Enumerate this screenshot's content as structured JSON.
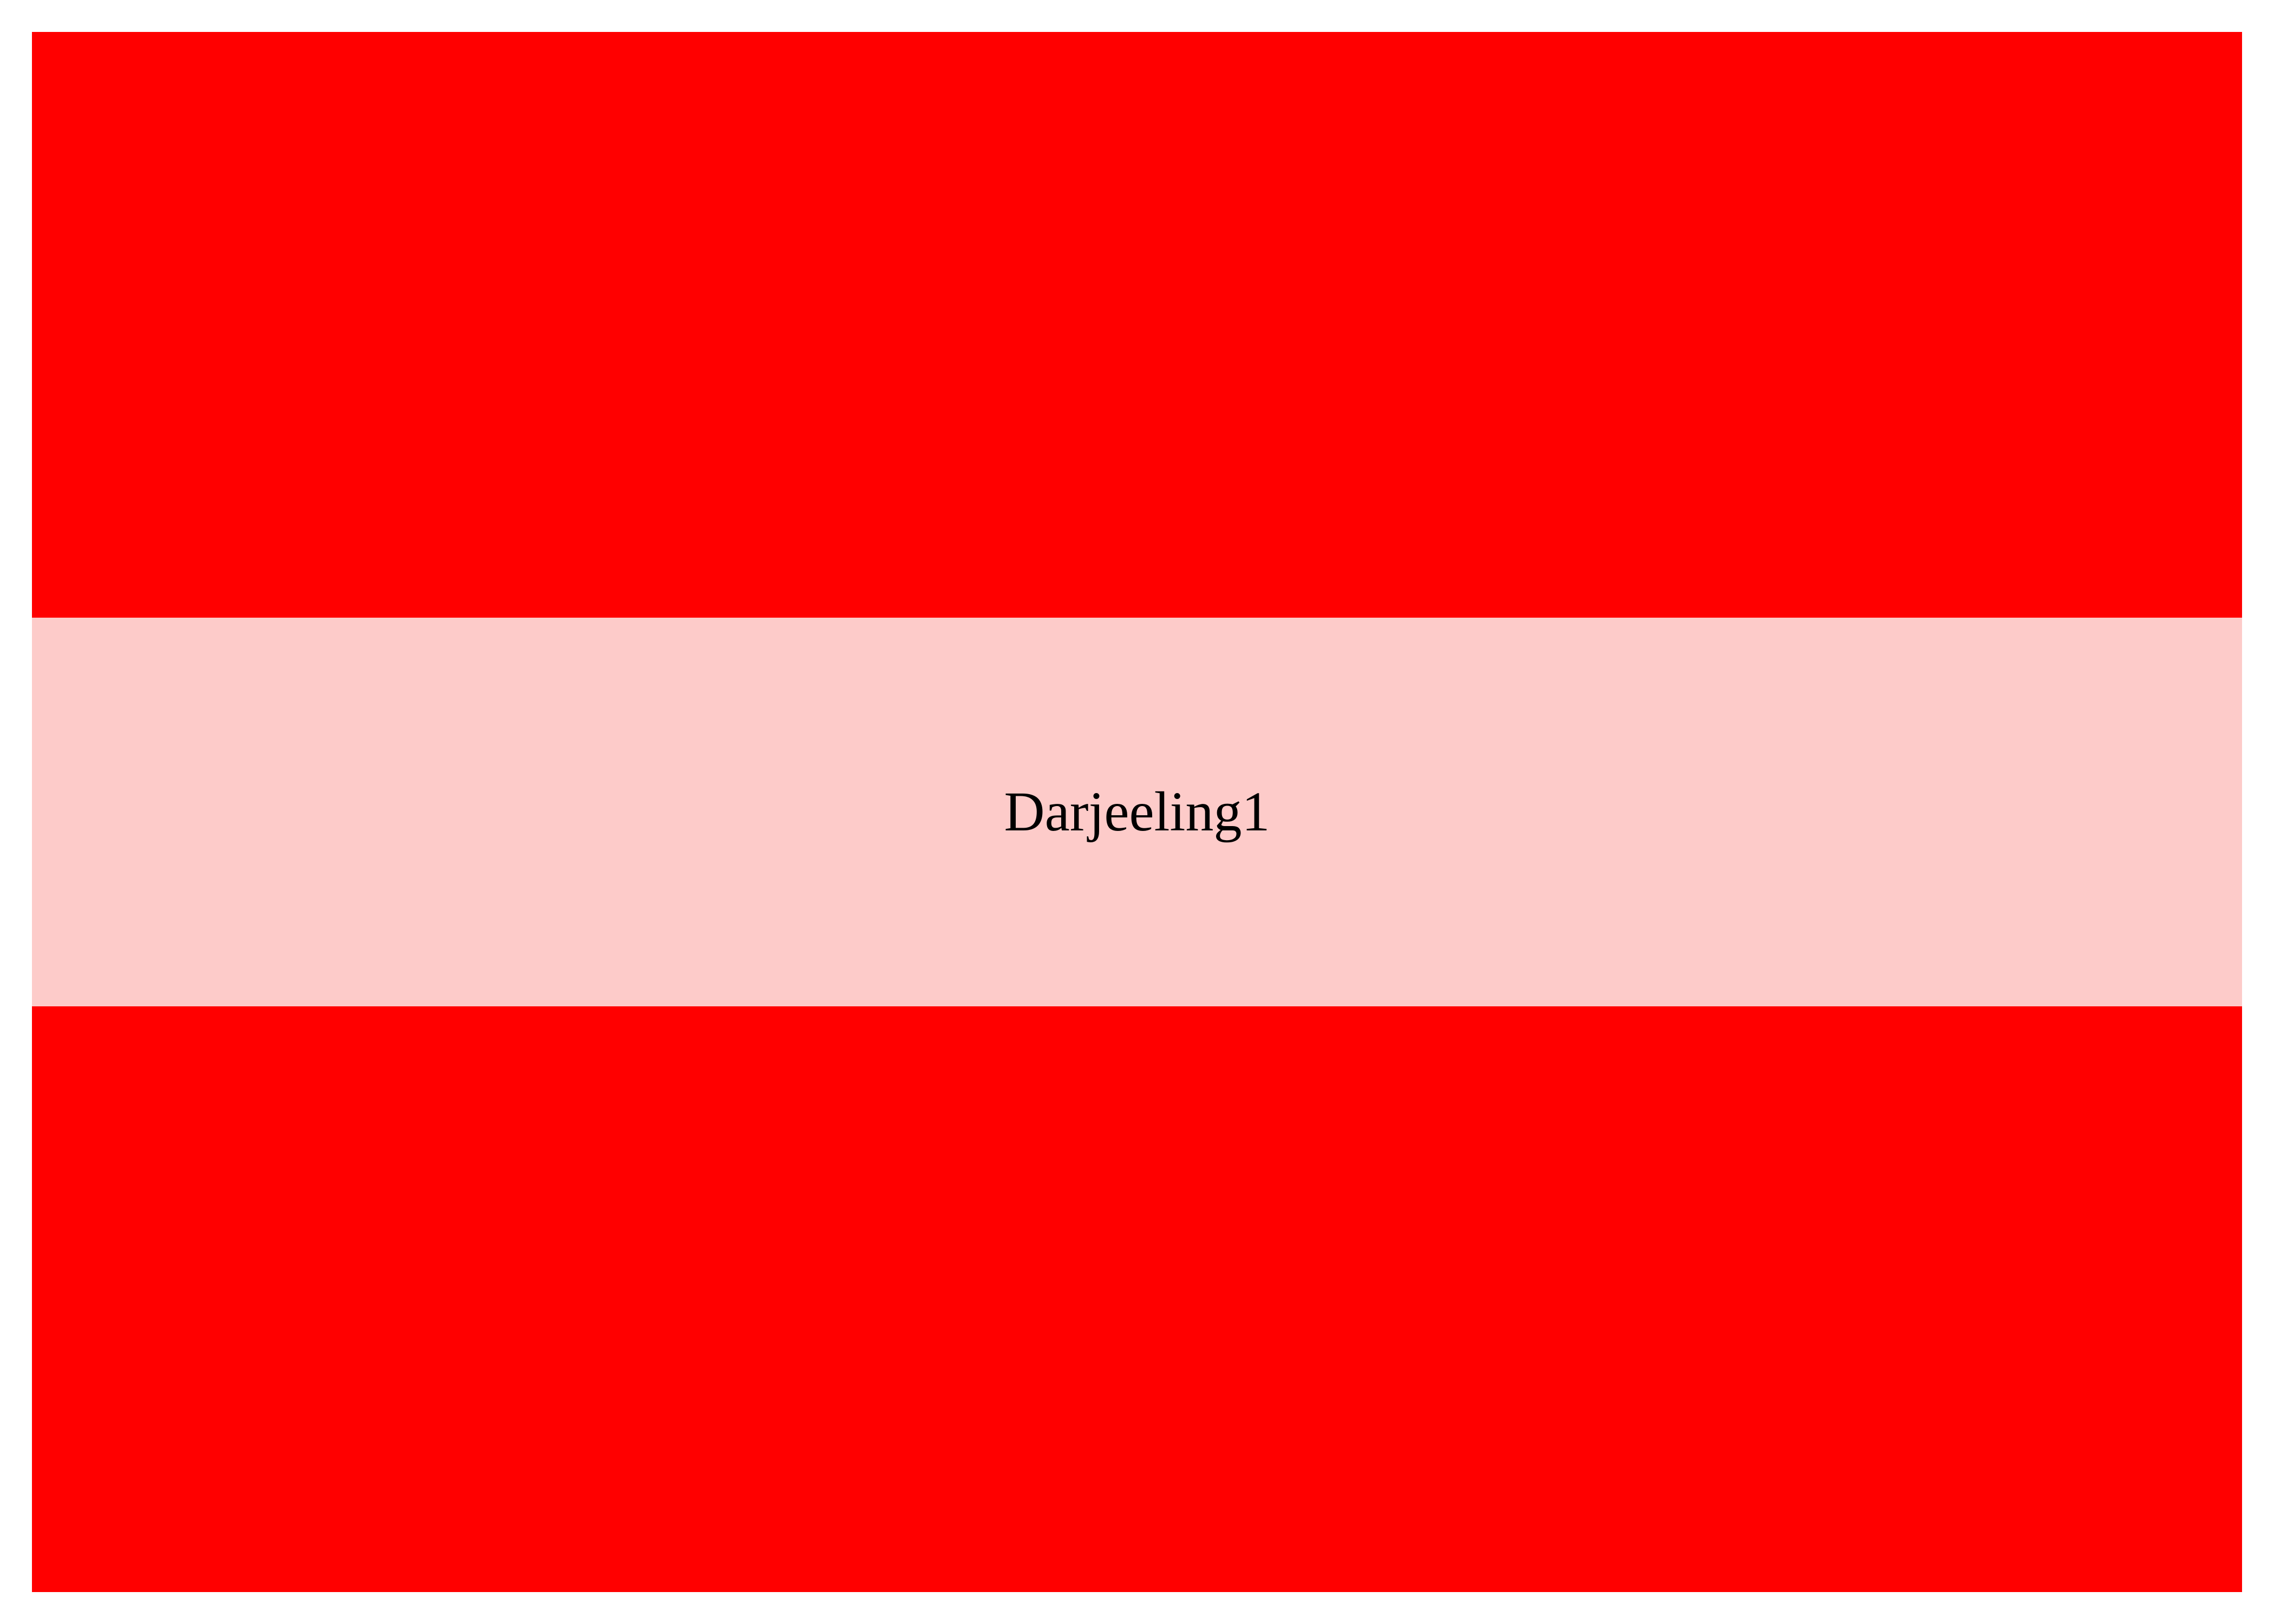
{
  "palette": {
    "outer_color": "#FF0000",
    "middle_color": "#FDCBC9",
    "background_color": "#FFFFFF"
  },
  "middle_band": {
    "label": "Darjeeling1"
  }
}
